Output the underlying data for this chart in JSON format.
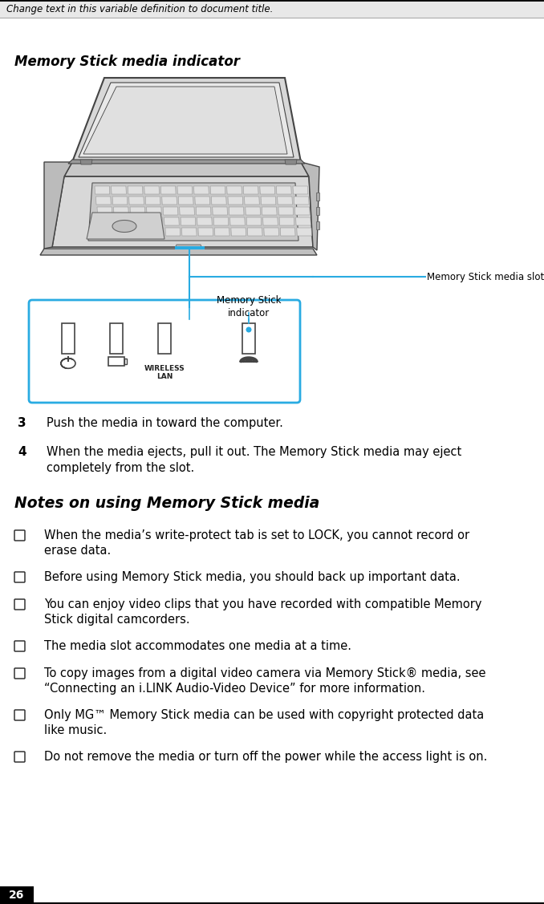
{
  "header_text": "Change text in this variable definition to document title.",
  "section_title": "Memory Stick media indicator",
  "step3_num": "3",
  "step3_text": "Push the media in toward the computer.",
  "step4_num": "4",
  "step4_text": "When the media ejects, pull it out. The Memory Stick media may eject\ncompletely from the slot.",
  "notes_title": "Notes on using Memory Stick media",
  "bullets": [
    "When the media’s write-protect tab is set to LOCK, you cannot record or\nerase data.",
    "Before using Memory Stick media, you should back up important data.",
    "You can enjoy video clips that you have recorded with compatible Memory\nStick digital camcorders.",
    "The media slot accommodates one media at a time.",
    "To copy images from a digital video camera via Memory Stick® media, see\n“Connecting an i.LINK Audio-Video Device” for more information.",
    "Only MG™ Memory Stick media can be used with copyright protected data\nlike music.",
    "Do not remove the media or turn off the power while the access light is on."
  ],
  "page_number": "26",
  "header_bg": "#e8e8e8",
  "header_border_top": "#000000",
  "header_border_bottom": "#aaaaaa",
  "page_num_bg": "#000000",
  "page_num_color": "#ffffff",
  "callout_color": "#29abe2",
  "laptop_fill": "#d8d8d8",
  "laptop_edge": "#444444",
  "body_bg": "#ffffff",
  "text_color": "#000000",
  "bullet_color": "#333333"
}
